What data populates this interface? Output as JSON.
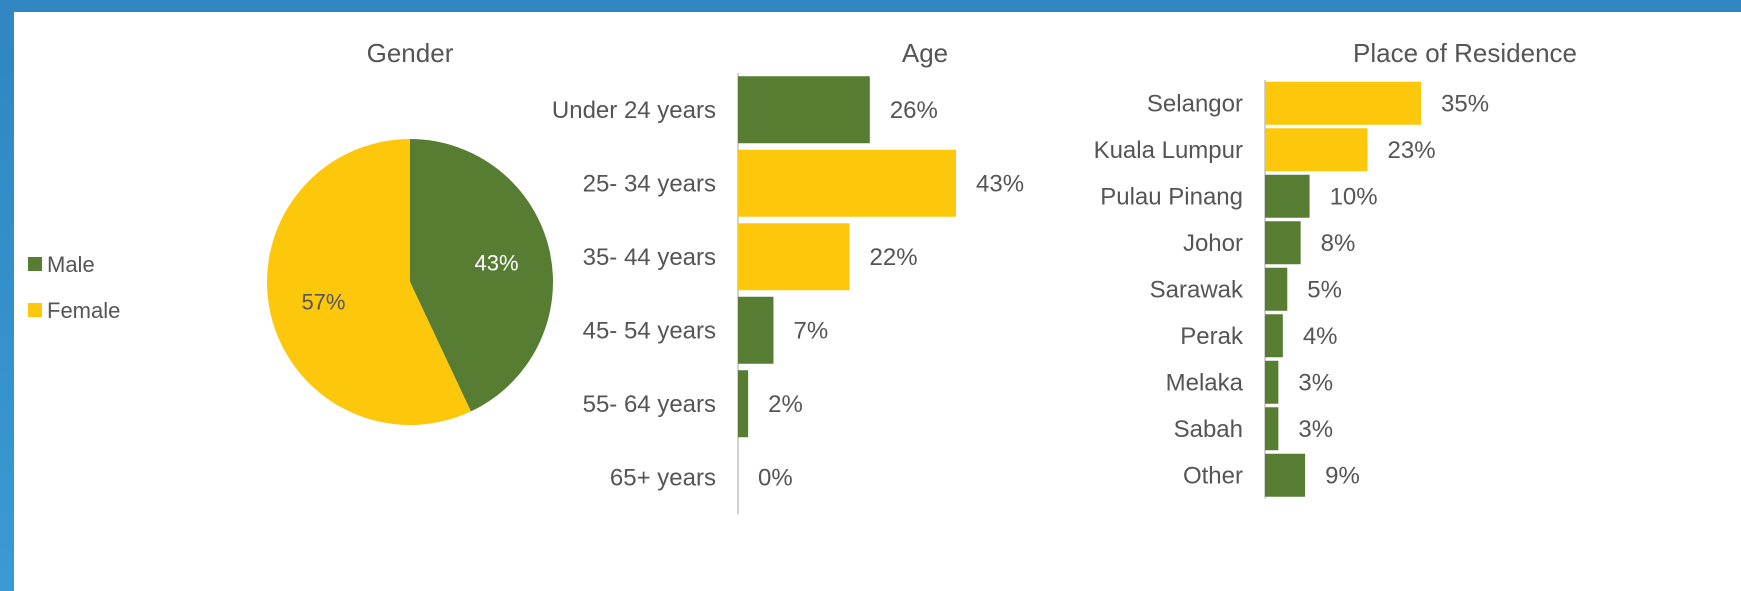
{
  "colors": {
    "green": "#567d32",
    "yellow": "#fdc80b",
    "axis": "#a6a6a6"
  },
  "chart_data": [
    {
      "type": "pie",
      "title": "Gender",
      "legend_position": "left",
      "slices": [
        {
          "name": "Male",
          "value": 43,
          "label": "43%",
          "color": "#567d32"
        },
        {
          "name": "Female",
          "value": 57,
          "label": "57%",
          "color": "#fdc80b"
        }
      ]
    },
    {
      "type": "bar",
      "orientation": "horizontal",
      "title": "Age",
      "categories": [
        "Under 24 years",
        "25- 34 years",
        "35- 44 years",
        "45- 54 years",
        "55- 64 years",
        "65+ years"
      ],
      "values": [
        26,
        43,
        22,
        7,
        2,
        0
      ],
      "value_labels": [
        "26%",
        "43%",
        "22%",
        "7%",
        "2%",
        "0%"
      ],
      "colors": [
        "#567d32",
        "#fdc80b",
        "#fdc80b",
        "#567d32",
        "#567d32",
        "#567d32"
      ],
      "xlim": [
        0,
        43
      ]
    },
    {
      "type": "bar",
      "orientation": "horizontal",
      "title": "Place of Residence",
      "categories": [
        "Selangor",
        "Kuala Lumpur",
        "Pulau Pinang",
        "Johor",
        "Sarawak",
        "Perak",
        "Melaka",
        "Sabah",
        "Other"
      ],
      "values": [
        35,
        23,
        10,
        8,
        5,
        4,
        3,
        3,
        9
      ],
      "value_labels": [
        "35%",
        "23%",
        "10%",
        "8%",
        "5%",
        "4%",
        "3%",
        "3%",
        "9%"
      ],
      "colors": [
        "#fdc80b",
        "#fdc80b",
        "#567d32",
        "#567d32",
        "#567d32",
        "#567d32",
        "#567d32",
        "#567d32",
        "#567d32"
      ],
      "xlim": [
        0,
        35
      ]
    }
  ]
}
